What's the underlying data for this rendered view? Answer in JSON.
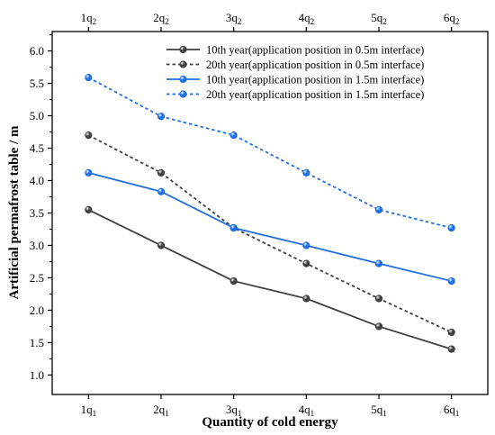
{
  "chart_data": {
    "type": "line",
    "xlabel": "Quantity of cold energy",
    "ylabel": "Artificial permafrost table / m",
    "bottom_ticks": [
      {
        "base": "1q",
        "sub": "1"
      },
      {
        "base": "2q",
        "sub": "1"
      },
      {
        "base": "3q",
        "sub": "1"
      },
      {
        "base": "4q",
        "sub": "1"
      },
      {
        "base": "5q",
        "sub": "1"
      },
      {
        "base": "6q",
        "sub": "1"
      }
    ],
    "top_ticks": [
      {
        "base": "1q",
        "sub": "2"
      },
      {
        "base": "2q",
        "sub": "2"
      },
      {
        "base": "3q",
        "sub": "2"
      },
      {
        "base": "4q",
        "sub": "2"
      },
      {
        "base": "5q",
        "sub": "2"
      },
      {
        "base": "6q",
        "sub": "2"
      }
    ],
    "x": [
      1,
      2,
      3,
      4,
      5,
      6
    ],
    "xlim": [
      0.5,
      6.5
    ],
    "ylim": [
      0.7,
      6.3
    ],
    "yticks": [
      "1.0",
      "1.5",
      "2.0",
      "2.5",
      "3.0",
      "3.5",
      "4.0",
      "4.5",
      "5.0",
      "5.5",
      "6.0"
    ],
    "grid": false,
    "legend_position": "top-right",
    "series": [
      {
        "name": "10th year(application position in 0.5m interface)",
        "values": [
          3.55,
          3.0,
          2.45,
          2.18,
          1.75,
          1.4
        ],
        "color": "#404040",
        "dash": "solid"
      },
      {
        "name": "20th year(application position in 0.5m interface)",
        "values": [
          4.7,
          4.12,
          3.27,
          2.72,
          2.18,
          1.66
        ],
        "color": "#404040",
        "dash": "dotted"
      },
      {
        "name": "10th year(application position in 1.5m interface)",
        "values": [
          4.12,
          3.83,
          3.27,
          3.0,
          2.72,
          2.45
        ],
        "color": "#1f6fe0",
        "dash": "solid"
      },
      {
        "name": "20th year(application position in 1.5m interface)",
        "values": [
          5.59,
          4.99,
          4.7,
          4.12,
          3.55,
          3.27
        ],
        "color": "#1f6fe0",
        "dash": "dotted"
      }
    ]
  }
}
